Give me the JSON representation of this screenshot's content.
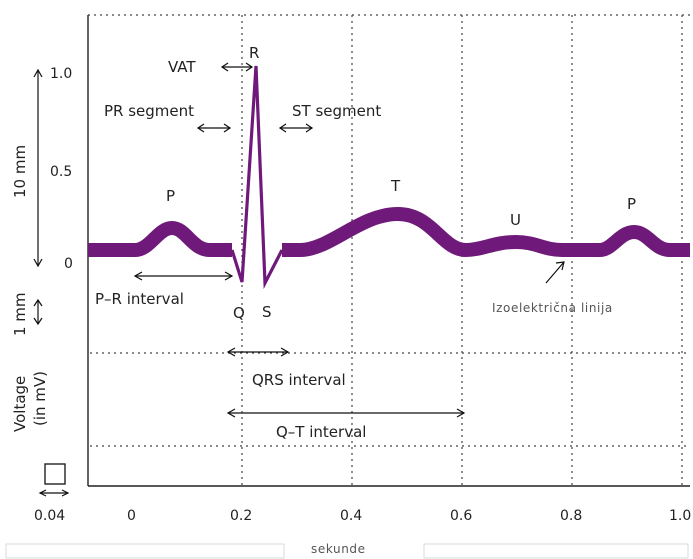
{
  "labels": {
    "vat": "VAT",
    "r": "R",
    "pr_segment": "PR segment",
    "st_segment": "ST segment",
    "p1": "P",
    "t": "T",
    "u": "U",
    "p2": "P",
    "q": "Q",
    "s": "S",
    "pr_interval": "P–R interval",
    "isoelectric": "Izoelektrična linija",
    "qrs_interval": "QRS interval",
    "qt_interval": "Q–T interval",
    "x_unit": "sekunde",
    "scale_10mm": "10 mm",
    "scale_1mm": "1 mm",
    "voltage_line1": "Voltage",
    "voltage_line2": "(in mV)",
    "small_box": "0.04"
  },
  "y_ticks": [
    "1.0",
    "0.5",
    "0"
  ],
  "x_ticks": [
    "0",
    "0.2",
    "0.4",
    "0.6",
    "0.8",
    "1.0"
  ],
  "colors": {
    "wave": "#6f1a7a",
    "grid": "#444444"
  }
}
